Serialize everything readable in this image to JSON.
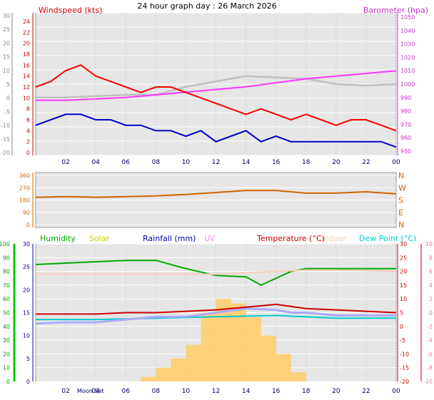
{
  "chart_data": [
    {
      "type": "line",
      "title": "24 hour graph day : 26 March 2026",
      "left_label": "Windspeed (kts)",
      "right_label": "Barometer (hpa)",
      "x_ticks": [
        "02",
        "04",
        "06",
        "08",
        "10",
        "12",
        "14",
        "16",
        "18",
        "20",
        "22",
        "00"
      ],
      "left_outer_ticks": [
        "30",
        "25",
        "20",
        "15",
        "10",
        "5",
        "0",
        "-5",
        "-10",
        "-15",
        "-20"
      ],
      "left_inner_ticks": [
        "24",
        "22",
        "20",
        "18",
        "16",
        "14",
        "12",
        "10",
        "8",
        "6",
        "4",
        "2",
        "0"
      ],
      "right_ticks": [
        "1050",
        "1040",
        "1030",
        "1020",
        "1010",
        "1000",
        "990",
        "980",
        "970",
        "960",
        "950"
      ],
      "colors": {
        "wind_gust": "#ff0000",
        "wind_avg": "#0000cc",
        "barometer": "#ff33ff",
        "grey_trace": "#c0c0c0"
      },
      "series": [
        {
          "name": "gust",
          "x": [
            0,
            1,
            2,
            3,
            4,
            5,
            6,
            7,
            8,
            9,
            10,
            11,
            12,
            13,
            14,
            15,
            16,
            17,
            18,
            19,
            20,
            21,
            22,
            23,
            24
          ],
          "values": [
            12,
            13,
            15,
            16,
            14,
            13,
            12,
            11,
            12,
            12,
            11,
            10,
            9,
            8,
            7,
            8,
            7,
            6,
            7,
            6,
            5,
            6,
            6,
            5,
            4
          ]
        },
        {
          "name": "avg",
          "x": [
            0,
            1,
            2,
            3,
            4,
            5,
            6,
            7,
            8,
            9,
            10,
            11,
            12,
            13,
            14,
            15,
            16,
            17,
            18,
            19,
            20,
            21,
            22,
            23,
            24
          ],
          "values": [
            5,
            6,
            7,
            7,
            6,
            6,
            5,
            5,
            4,
            4,
            3,
            4,
            2,
            3,
            4,
            2,
            3,
            2,
            2,
            2,
            2,
            2,
            2,
            2,
            1
          ]
        },
        {
          "name": "barometer",
          "x": [
            0,
            2,
            4,
            6,
            8,
            10,
            12,
            14,
            16,
            18,
            20,
            22,
            24
          ],
          "values": [
            988,
            988,
            989,
            990,
            992,
            994,
            996,
            998,
            1001,
            1004,
            1006,
            1008,
            1010
          ]
        },
        {
          "name": "grey",
          "x": [
            0,
            2,
            4,
            6,
            8,
            10,
            12,
            14,
            16,
            18,
            20,
            22,
            24
          ],
          "values": [
            990,
            990,
            991,
            992,
            992,
            998,
            1002,
            1006,
            1005,
            1004,
            1000,
            999,
            1000
          ]
        }
      ]
    },
    {
      "type": "line",
      "left_ticks": [
        "360",
        "270",
        "180",
        "90",
        "0"
      ],
      "right_ticks": [
        "N",
        "W",
        "S",
        "E",
        "N"
      ],
      "colors": {
        "direction": "#cc6600"
      },
      "series": [
        {
          "name": "direction",
          "x": [
            0,
            2,
            4,
            6,
            8,
            10,
            12,
            14,
            16,
            18,
            20,
            22,
            24
          ],
          "values": [
            200,
            205,
            200,
            205,
            210,
            220,
            235,
            250,
            250,
            230,
            230,
            240,
            225
          ]
        }
      ]
    },
    {
      "type": "line",
      "legend": [
        "Humidity",
        "Solar",
        "Rainfall (mm)",
        "UV",
        "Temperature (°C)",
        "Indoor",
        "Dew Point (°C)"
      ],
      "legend_colors": [
        "#00aa00",
        "#cccc00",
        "#0000aa",
        "#ff88ff",
        "#cc0000",
        "#ffccbb",
        "#00cccc"
      ],
      "x_ticks": [
        "02",
        "04",
        "06",
        "08",
        "10",
        "12",
        "14",
        "16",
        "18",
        "20",
        "22",
        "00"
      ],
      "x_extra": [
        "Moon Set"
      ],
      "left_outer_ticks": [
        "100",
        "90",
        "80",
        "70",
        "60",
        "50",
        "40",
        "30",
        "20",
        "10",
        "0"
      ],
      "left_inner_ticks": [
        "30",
        "25",
        "20",
        "15",
        "10",
        "5",
        "0"
      ],
      "right_inner_ticks": [
        "30",
        "25",
        "20",
        "15",
        "10",
        "5",
        "0",
        "-5",
        "-10",
        "-15",
        "-20"
      ],
      "right_outer_ticks": [
        "10",
        "8",
        "6",
        "4",
        "2",
        "0",
        "-2",
        "-4",
        "-6",
        "-8",
        "-10"
      ],
      "series": [
        {
          "name": "Humidity",
          "x": [
            0,
            2,
            4,
            6,
            8,
            10,
            12,
            14,
            15,
            16,
            17,
            18,
            20,
            22,
            24
          ],
          "values": [
            85,
            86,
            87,
            88,
            88,
            82,
            77,
            76,
            70,
            75,
            80,
            82,
            82,
            82,
            82
          ]
        },
        {
          "name": "Indoor",
          "x": [
            0,
            4,
            8,
            12,
            16,
            18,
            20,
            24
          ],
          "values": [
            19,
            19,
            19,
            19,
            20,
            20.5,
            20.5,
            20
          ]
        },
        {
          "name": "Temperature (°C)",
          "x": [
            0,
            2,
            4,
            6,
            8,
            10,
            12,
            14,
            16,
            18,
            20,
            22,
            24
          ],
          "values": [
            4.5,
            4.5,
            4.5,
            5,
            5,
            5.5,
            6,
            7,
            8,
            6.5,
            6,
            5.5,
            5
          ]
        },
        {
          "name": "Dew Point (°C)",
          "x": [
            0,
            4,
            8,
            12,
            16,
            20,
            24
          ],
          "values": [
            2.5,
            2.5,
            3,
            3.5,
            4,
            3,
            3
          ]
        },
        {
          "name": "UV",
          "x": [
            0,
            2,
            4,
            6,
            8,
            10,
            12,
            14,
            16,
            17,
            18,
            20,
            22,
            24
          ],
          "values": [
            1,
            1.5,
            1.5,
            2.5,
            3.5,
            3.5,
            5,
            6.5,
            6,
            5,
            5,
            4,
            4,
            4
          ]
        },
        {
          "name": "Solar",
          "x": [
            6,
            7,
            8,
            9,
            10,
            11,
            12,
            13,
            14,
            15,
            16,
            17,
            18
          ],
          "values": [
            0,
            1,
            3,
            5,
            8,
            15,
            18,
            17,
            14,
            10,
            6,
            2,
            0
          ]
        }
      ]
    }
  ]
}
